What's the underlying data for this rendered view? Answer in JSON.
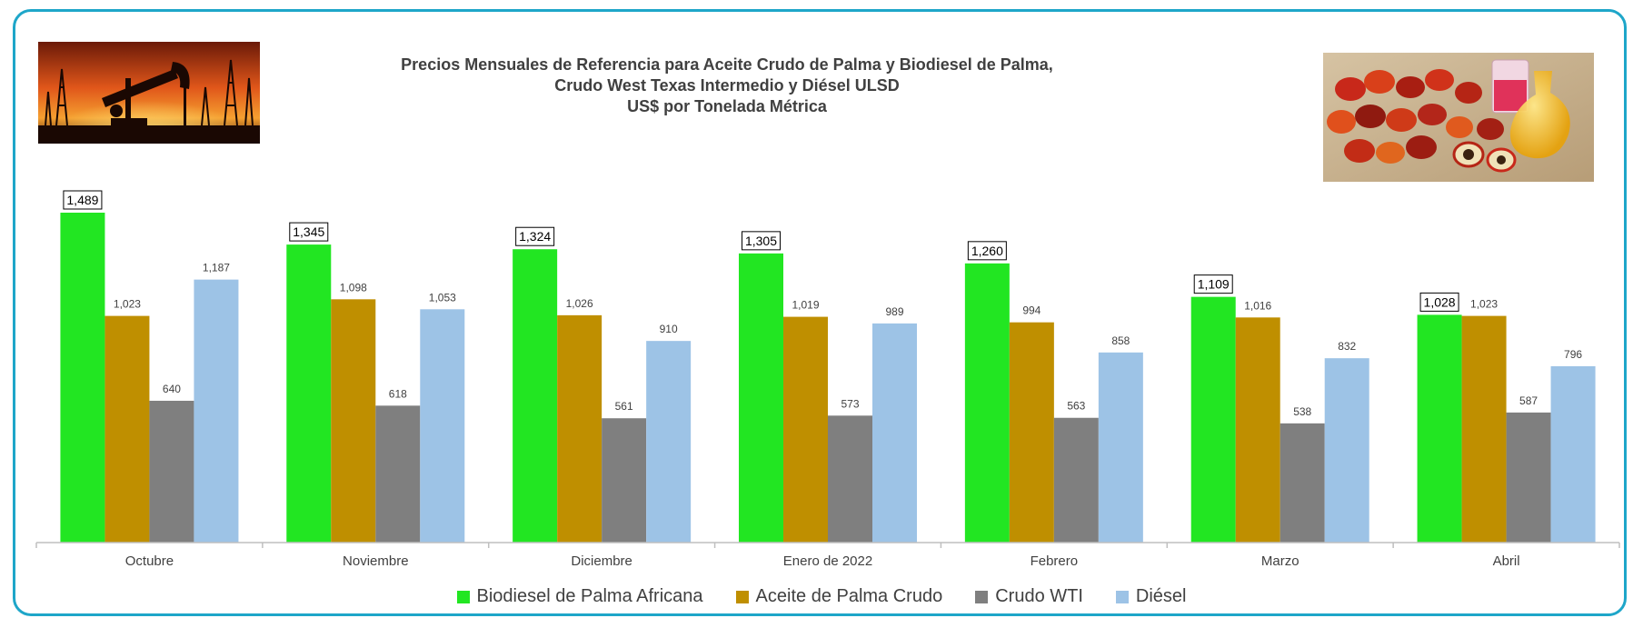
{
  "chart_data": {
    "type": "bar",
    "title": [
      "Precios Mensuales de Referencia para Aceite Crudo de Palma y Biodiesel de Palma,",
      "Crudo West Texas Intermedio y Diésel ULSD",
      "US$ por Tonelada Métrica"
    ],
    "categories": [
      "Octubre",
      "Noviembre",
      "Diciembre",
      "Enero de 2022",
      "Febrero",
      "Marzo",
      "Abril"
    ],
    "series": [
      {
        "name": "Biodiesel de Palma Africana",
        "color": "#22e622",
        "values": [
          1489,
          1345,
          1324,
          1305,
          1260,
          1109,
          1028
        ],
        "labels": [
          "1,489",
          "1,345",
          "1,324",
          "1,305",
          "1,260",
          "1,109",
          "1,028"
        ],
        "boxed_labels": true
      },
      {
        "name": "Aceite de Palma Crudo",
        "color": "#bf8f00",
        "values": [
          1023,
          1098,
          1026,
          1019,
          994,
          1016,
          1023
        ],
        "labels": [
          "1,023",
          "1,098",
          "1,026",
          "1,019",
          "994",
          "1,016",
          "1,023"
        ]
      },
      {
        "name": "Crudo WTI",
        "color": "#7f7f7f",
        "values": [
          640,
          618,
          561,
          573,
          563,
          538,
          587
        ],
        "labels": [
          "640",
          "618",
          "561",
          "573",
          "563",
          "538",
          "587"
        ]
      },
      {
        "name": "Diésel",
        "color": "#9dc3e6",
        "values": [
          1187,
          1053,
          910,
          989,
          858,
          832,
          796
        ],
        "labels": [
          "1,187",
          "1,053",
          "910",
          "989",
          "858",
          "832",
          "796"
        ]
      }
    ],
    "ylim": [
      0,
      1500
    ],
    "grid": false,
    "legend_position": "bottom"
  },
  "images": {
    "left": "oil-pumpjack-sunset-image",
    "right": "palm-fruit-biodiesel-image"
  }
}
